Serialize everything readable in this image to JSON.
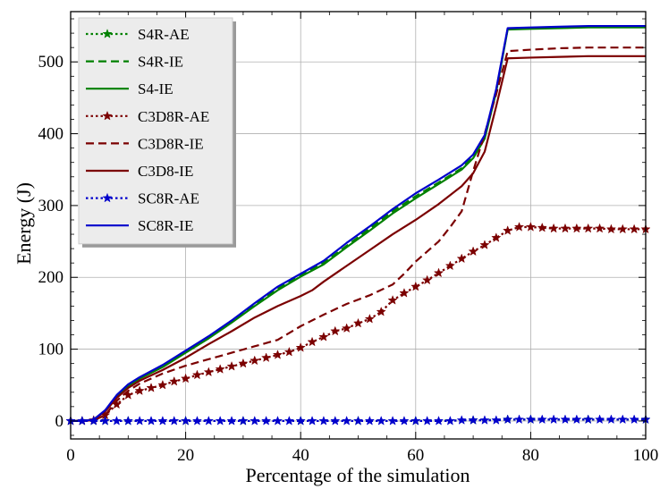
{
  "chart_data": {
    "type": "line",
    "title": "",
    "xlabel": "Percentage of the simulation",
    "ylabel": "Energy (J)",
    "xlim": [
      0,
      100
    ],
    "ylim": [
      -25,
      570
    ],
    "xticks": [
      0,
      20,
      40,
      60,
      80,
      100
    ],
    "yticks": [
      0,
      100,
      200,
      300,
      400,
      500
    ],
    "grid": true,
    "legend_position": "top-left",
    "series": [
      {
        "name": "S4R-AE",
        "color": "#008000",
        "linestyle": "dotted",
        "marker": "star",
        "x": [
          0,
          2,
          4,
          6,
          10,
          20,
          30,
          40,
          50,
          60,
          70,
          76,
          80,
          90,
          100
        ],
        "y": [
          0,
          0,
          0,
          0,
          0,
          0,
          0,
          0,
          0,
          0,
          1,
          2,
          2,
          2,
          2
        ]
      },
      {
        "name": "S4R-IE",
        "color": "#008000",
        "linestyle": "dashed",
        "marker": "none",
        "x": [
          0,
          2,
          4,
          6,
          8,
          10,
          12,
          16,
          20,
          24,
          28,
          32,
          36,
          40,
          44,
          48,
          52,
          56,
          60,
          64,
          68,
          70,
          72,
          74,
          76,
          80,
          85,
          90,
          95,
          100
        ],
        "y": [
          0,
          0,
          2,
          14,
          35,
          50,
          60,
          76,
          96,
          116,
          138,
          162,
          184,
          203,
          220,
          244,
          268,
          292,
          313,
          332,
          352,
          368,
          395,
          460,
          546,
          547,
          548,
          549,
          549,
          549
        ]
      },
      {
        "name": "S4-IE",
        "color": "#008000",
        "linestyle": "solid",
        "marker": "none",
        "x": [
          0,
          2,
          4,
          6,
          8,
          10,
          12,
          16,
          20,
          24,
          28,
          32,
          36,
          40,
          44,
          48,
          52,
          56,
          60,
          64,
          68,
          70,
          72,
          74,
          76,
          80,
          85,
          90,
          95,
          100
        ],
        "y": [
          0,
          0,
          2,
          14,
          34,
          49,
          59,
          75,
          95,
          115,
          137,
          160,
          182,
          201,
          218,
          242,
          265,
          289,
          310,
          330,
          350,
          366,
          393,
          458,
          545,
          546,
          547,
          548,
          548,
          548
        ]
      },
      {
        "name": "C3D8R-AE",
        "color": "#7b0000",
        "linestyle": "dotted",
        "marker": "star",
        "x": [
          0,
          2,
          4,
          6,
          8,
          10,
          12,
          14,
          16,
          18,
          20,
          22,
          24,
          26,
          28,
          30,
          32,
          34,
          36,
          38,
          40,
          42,
          44,
          46,
          48,
          50,
          52,
          54,
          56,
          58,
          60,
          62,
          64,
          66,
          68,
          70,
          72,
          74,
          76,
          78,
          80,
          82,
          84,
          86,
          88,
          90,
          92,
          94,
          96,
          98,
          100
        ],
        "y": [
          0,
          0,
          1,
          8,
          23,
          36,
          42,
          46,
          50,
          55,
          59,
          64,
          68,
          72,
          76,
          80,
          84,
          88,
          92,
          96,
          102,
          110,
          117,
          125,
          129,
          136,
          142,
          152,
          168,
          178,
          187,
          196,
          206,
          216,
          226,
          236,
          245,
          255,
          265,
          270,
          270,
          269,
          268,
          268,
          268,
          268,
          268,
          267,
          267,
          267,
          267
        ]
      },
      {
        "name": "C3D8R-IE",
        "color": "#7b0000",
        "linestyle": "dashed",
        "marker": "none",
        "x": [
          0,
          2,
          4,
          6,
          8,
          10,
          12,
          16,
          20,
          24,
          28,
          32,
          36,
          40,
          44,
          48,
          52,
          56,
          58,
          60,
          64,
          66,
          68,
          70,
          72,
          74,
          76,
          80,
          85,
          90,
          95,
          100
        ],
        "y": [
          0,
          0,
          1,
          8,
          28,
          42,
          52,
          66,
          77,
          86,
          95,
          104,
          113,
          132,
          148,
          163,
          175,
          190,
          205,
          222,
          250,
          270,
          292,
          348,
          400,
          455,
          515,
          517,
          519,
          520,
          520,
          520
        ]
      },
      {
        "name": "C3D8-IE",
        "color": "#7b0000",
        "linestyle": "solid",
        "marker": "none",
        "x": [
          0,
          2,
          4,
          6,
          8,
          10,
          12,
          16,
          20,
          24,
          28,
          32,
          36,
          40,
          42,
          44,
          48,
          52,
          56,
          60,
          64,
          68,
          70,
          72,
          74,
          76,
          80,
          85,
          90,
          95,
          100
        ],
        "y": [
          0,
          0,
          2,
          13,
          32,
          46,
          56,
          71,
          88,
          107,
          125,
          144,
          160,
          174,
          182,
          194,
          216,
          238,
          260,
          280,
          302,
          327,
          345,
          375,
          438,
          505,
          506,
          507,
          508,
          508,
          508
        ]
      },
      {
        "name": "SC8R-AE",
        "color": "#0000cc",
        "linestyle": "dotted",
        "marker": "star",
        "x": [
          0,
          2,
          4,
          6,
          8,
          10,
          12,
          14,
          16,
          18,
          20,
          22,
          24,
          26,
          28,
          30,
          32,
          34,
          36,
          38,
          40,
          42,
          44,
          46,
          48,
          50,
          52,
          54,
          56,
          58,
          60,
          62,
          64,
          66,
          68,
          70,
          72,
          74,
          76,
          78,
          80,
          82,
          84,
          86,
          88,
          90,
          92,
          94,
          96,
          98,
          100
        ],
        "y": [
          0,
          0,
          0,
          0,
          0,
          0,
          0,
          0,
          0,
          0,
          0,
          0,
          0,
          0,
          0,
          0,
          0,
          0,
          0,
          0,
          0,
          0,
          0,
          0,
          0,
          0,
          0,
          0,
          0,
          0,
          0,
          0,
          0,
          0,
          1,
          1,
          1,
          1,
          2,
          2,
          2,
          2,
          2,
          2,
          2,
          2,
          2,
          2,
          2,
          2,
          2
        ]
      },
      {
        "name": "SC8R-IE",
        "color": "#0000cc",
        "linestyle": "solid",
        "marker": "none",
        "x": [
          0,
          2,
          4,
          6,
          8,
          10,
          12,
          16,
          20,
          24,
          28,
          32,
          36,
          40,
          44,
          48,
          52,
          56,
          60,
          64,
          68,
          70,
          72,
          74,
          76,
          80,
          85,
          90,
          95,
          100
        ],
        "y": [
          0,
          0,
          2,
          15,
          36,
          51,
          61,
          78,
          98,
          118,
          140,
          164,
          187,
          205,
          223,
          248,
          271,
          295,
          317,
          336,
          356,
          371,
          398,
          462,
          547,
          548,
          549,
          550,
          550,
          550
        ]
      }
    ]
  }
}
